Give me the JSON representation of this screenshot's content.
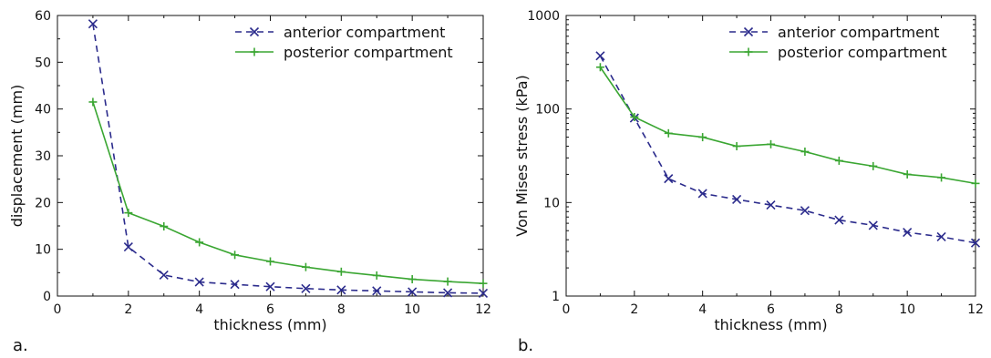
{
  "chart_data": [
    {
      "type": "line",
      "panel_label": "a.",
      "xlabel": "thickness (mm)",
      "ylabel": "displacement (mm)",
      "xlim": [
        0,
        12
      ],
      "ylim": [
        0,
        60
      ],
      "yscale": "linear",
      "xticks": [
        "0",
        "2",
        "4",
        "6",
        "8",
        "10",
        "12"
      ],
      "yticks": [
        "0",
        "10",
        "20",
        "30",
        "40",
        "50",
        "60"
      ],
      "legend_position": "top-right",
      "grid": false,
      "x": [
        1,
        2,
        3,
        4,
        5,
        6,
        7,
        8,
        9,
        10,
        11,
        12
      ],
      "series": [
        {
          "name": "anterior compartment",
          "style": "dashed",
          "marker": "x",
          "color": "#2b2b8c",
          "values": [
            58.2,
            10.5,
            4.5,
            3.0,
            2.5,
            2.0,
            1.6,
            1.3,
            1.1,
            0.9,
            0.7,
            0.6
          ]
        },
        {
          "name": "posterior compartment",
          "style": "solid",
          "marker": "+",
          "color": "#3aa632",
          "values": [
            41.5,
            17.8,
            14.9,
            11.5,
            8.8,
            7.4,
            6.2,
            5.2,
            4.4,
            3.6,
            3.1,
            2.7
          ]
        }
      ]
    },
    {
      "type": "line",
      "panel_label": "b.",
      "xlabel": "thickness (mm)",
      "ylabel": "Von Mises stress (kPa)",
      "xlim": [
        0,
        12
      ],
      "ylim": [
        1,
        1000
      ],
      "yscale": "log",
      "xticks": [
        "0",
        "2",
        "4",
        "6",
        "8",
        "10",
        "12"
      ],
      "yticks": [
        "1",
        "10",
        "100",
        "1000"
      ],
      "legend_position": "top-right",
      "grid": false,
      "x": [
        1,
        2,
        3,
        4,
        5,
        6,
        7,
        8,
        9,
        10,
        11,
        12
      ],
      "series": [
        {
          "name": "anterior compartment",
          "style": "dashed",
          "marker": "x",
          "color": "#2b2b8c",
          "values": [
            370,
            80,
            18,
            12.5,
            10.8,
            9.4,
            8.2,
            6.5,
            5.7,
            4.8,
            4.3,
            3.7
          ]
        },
        {
          "name": "posterior compartment",
          "style": "solid",
          "marker": "+",
          "color": "#3aa632",
          "values": [
            280,
            82,
            55,
            50,
            40,
            42,
            35,
            28,
            24.5,
            20,
            18.5,
            16
          ]
        }
      ]
    }
  ]
}
